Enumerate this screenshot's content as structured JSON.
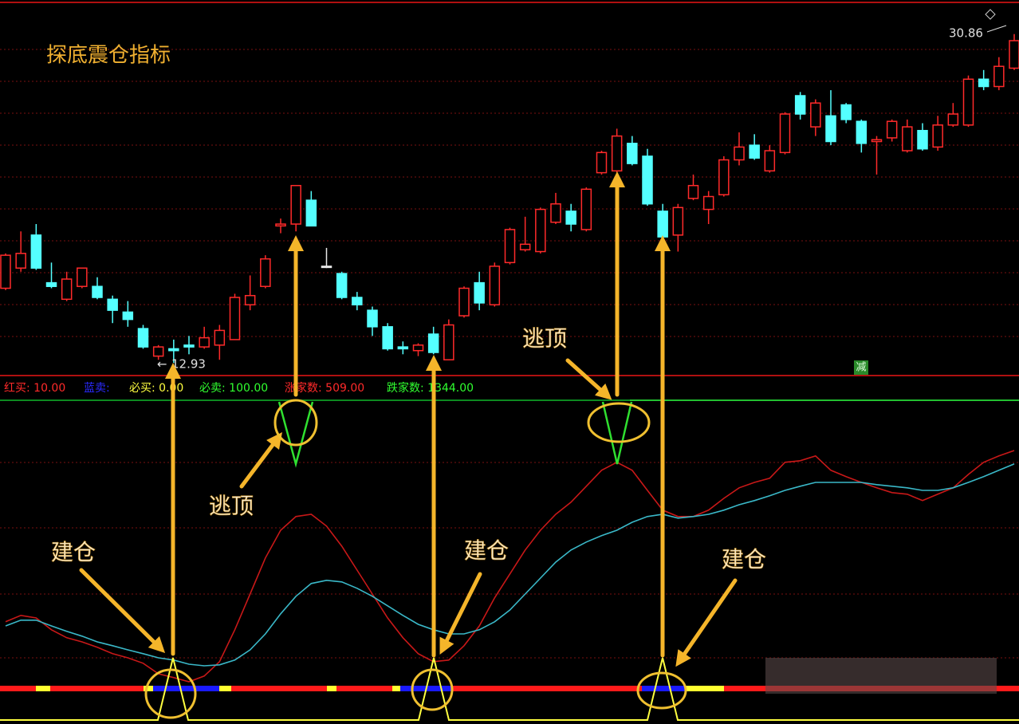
{
  "chart_data": [
    {
      "type": "candlestick",
      "title": "探底震仓指标",
      "ylim": [
        12.37,
        32.5
      ],
      "up_color": "#ff2a2a",
      "down_color": "#54ffff",
      "open": [
        17.0,
        18.1,
        19.9,
        17.3,
        16.4,
        17.1,
        17.1,
        16.4,
        15.7,
        14.8,
        13.3,
        13.7,
        13.9,
        13.8,
        13.9,
        14.2,
        16.1,
        17.1,
        20.4,
        20.5,
        21.8,
        18.2,
        17.8,
        16.5,
        15.8,
        14.9,
        13.8,
        13.6,
        14.5,
        13.1,
        15.5,
        17.3,
        16.1,
        18.4,
        19.1,
        19.0,
        20.6,
        21.2,
        20.2,
        23.3,
        23.4,
        24.9,
        24.2,
        21.2,
        19.9,
        21.9,
        21.3,
        22.1,
        24.0,
        24.8,
        23.4,
        24.4,
        27.5,
        25.8,
        26.4,
        27.0,
        26.1,
        25.0,
        25.2,
        24.5,
        25.6,
        24.7,
        25.9,
        25.9,
        28.4,
        28.0,
        29.0
      ],
      "high": [
        18.9,
        20.1,
        20.5,
        18.4,
        17.9,
        18.1,
        17.6,
        16.6,
        16.3,
        15.0,
        13.9,
        14.2,
        14.4,
        14.9,
        15.0,
        16.7,
        17.7,
        18.8,
        20.8,
        22.6,
        22.3,
        19.2,
        17.9,
        16.8,
        16.0,
        15.1,
        14.1,
        14.0,
        14.9,
        15.3,
        17.1,
        17.9,
        18.4,
        20.3,
        20.9,
        21.4,
        22.2,
        21.6,
        22.5,
        24.5,
        25.7,
        25.3,
        24.6,
        21.6,
        21.6,
        23.2,
        22.3,
        24.2,
        25.5,
        25.4,
        24.8,
        26.6,
        27.7,
        27.3,
        27.8,
        27.1,
        26.2,
        25.3,
        26.2,
        26.2,
        26.0,
        26.4,
        27.1,
        28.6,
        28.9,
        29.6,
        30.86
      ],
      "low": [
        16.9,
        17.9,
        18.0,
        17.0,
        16.3,
        17.0,
        16.4,
        15.1,
        14.9,
        13.7,
        13.1,
        12.93,
        13.4,
        13.7,
        13.1,
        14.2,
        15.8,
        17.0,
        20.0,
        20.1,
        20.4,
        18.1,
        16.4,
        15.8,
        14.4,
        13.6,
        13.4,
        13.3,
        13.4,
        13.1,
        15.4,
        15.8,
        16.0,
        18.3,
        19.0,
        18.9,
        20.5,
        20.1,
        20.1,
        23.2,
        23.3,
        23.7,
        21.5,
        19.7,
        19.0,
        21.8,
        20.5,
        22.0,
        23.7,
        24.0,
        23.3,
        24.3,
        26.2,
        25.3,
        24.8,
        26.0,
        24.4,
        23.2,
        25.0,
        24.4,
        24.5,
        24.5,
        25.8,
        25.8,
        27.8,
        27.8,
        28.9
      ],
      "close": [
        18.8,
        18.9,
        18.1,
        17.1,
        17.5,
        18.1,
        16.5,
        15.8,
        15.3,
        13.8,
        13.8,
        13.6,
        13.8,
        14.3,
        14.7,
        16.5,
        16.6,
        18.6,
        20.5,
        22.6,
        20.4,
        18.2,
        16.5,
        16.1,
        14.9,
        13.7,
        13.7,
        13.9,
        13.5,
        15.0,
        17.0,
        16.2,
        18.2,
        20.2,
        19.4,
        21.3,
        21.6,
        20.5,
        22.4,
        24.4,
        25.3,
        23.8,
        21.6,
        19.8,
        21.4,
        22.6,
        22.0,
        24.0,
        24.7,
        24.1,
        24.5,
        26.5,
        26.5,
        27.1,
        25.0,
        26.2,
        24.9,
        25.1,
        26.1,
        25.8,
        24.6,
        25.9,
        26.5,
        28.4,
        28.0,
        29.1,
        30.5
      ]
    },
    {
      "type": "line",
      "ylim": [
        0,
        100
      ],
      "legend": [
        "红买: 10.00",
        "蓝卖:",
        "必买: 0.00",
        "必卖: 100.00",
        "涨家数: 509.00",
        "跌家数: 1344.00"
      ],
      "annotations": [
        "逃顶",
        "逃顶",
        "建仓",
        "建仓",
        "建仓"
      ],
      "badge": "减",
      "series": [
        {
          "color": "#c81818",
          "values": [
            30.8,
            32.8,
            32,
            28.3,
            25.8,
            24.5,
            22.8,
            20.8,
            19.5,
            17.8,
            14.5,
            13.3,
            12,
            13.8,
            18.3,
            28.3,
            39.5,
            50.8,
            59.5,
            63.8,
            64.5,
            60.8,
            54.5,
            47,
            39.5,
            32,
            25.8,
            20.8,
            18.3,
            18.8,
            23.3,
            29.5,
            38.3,
            45.8,
            53.3,
            59.5,
            64.5,
            68.3,
            73.3,
            78.3,
            80.8,
            78.3,
            72,
            65.8,
            63.8,
            63.8,
            65.8,
            69.5,
            72.8,
            74.5,
            75.8,
            80.8,
            81.3,
            82.8,
            78.3,
            76.3,
            74.5,
            72.8,
            71.3,
            70.8,
            68.8,
            70.8,
            72.8,
            77,
            80.8,
            82.8,
            84.5
          ]
        },
        {
          "color": "#3ab8c8",
          "values": [
            29.5,
            31.3,
            31.3,
            29.5,
            27.8,
            26.3,
            24.5,
            23.3,
            22,
            20.8,
            19.5,
            18.8,
            17.5,
            17,
            17.3,
            18.8,
            22,
            27,
            33.3,
            38.8,
            42.8,
            43.8,
            43.3,
            41.3,
            38.8,
            35.8,
            32.8,
            30,
            28.3,
            27,
            27,
            28.3,
            30.8,
            34.5,
            39.5,
            44.5,
            49.5,
            53.3,
            55.8,
            57.8,
            59.5,
            62,
            63.8,
            64.5,
            63.3,
            63.8,
            64.5,
            65.8,
            67.5,
            68.8,
            70.3,
            72,
            73.3,
            74.5,
            74.5,
            74.5,
            74.5,
            73.8,
            73.3,
            72.8,
            72,
            72,
            72.8,
            74.5,
            76.3,
            78.3,
            80.3
          ]
        }
      ]
    }
  ]
}
